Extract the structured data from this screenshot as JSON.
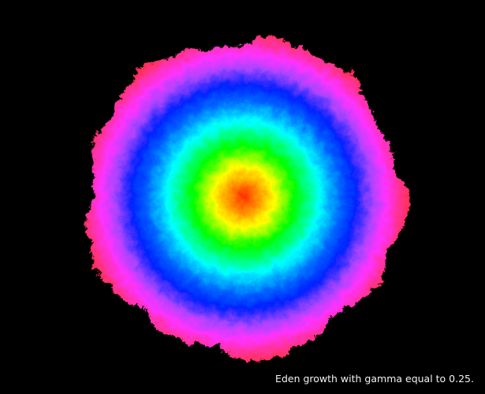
{
  "caption": "Eden growth with gamma equal to 0.25.",
  "colors": {
    "background": "#000000",
    "caption_text": "#f2f2f2",
    "rings_center_to_edge": [
      "#ff2a00",
      "#ffff00",
      "#00ff00",
      "#00ffff",
      "#0033ff",
      "#ff33ff",
      "#ff2a40"
    ]
  },
  "visual": {
    "subject": "eden-growth-cluster",
    "color_scheme": "rainbow-concentric-rings"
  }
}
